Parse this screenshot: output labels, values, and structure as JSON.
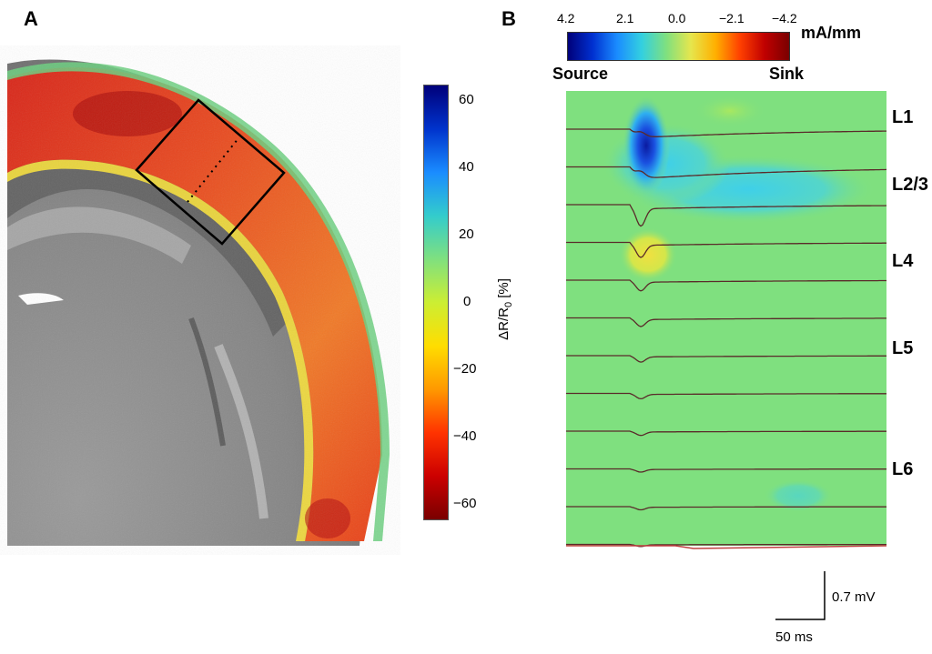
{
  "panel_a": {
    "letter": "A",
    "colorbar": {
      "ticks": [
        "60",
        "40",
        "20",
        "0",
        "−20",
        "−40",
        "−60"
      ],
      "label_main": "ΔR/R",
      "label_sub": "0",
      "label_unit": " [%]",
      "colors": [
        "#00007a",
        "#0033cc",
        "#1a8cff",
        "#33cccc",
        "#7fe07f",
        "#ccee33",
        "#ffdd00",
        "#ff9900",
        "#ff3300",
        "#cc0000",
        "#7a0000"
      ]
    },
    "overlay_colors": [
      "#6bcf7f",
      "#f7e03a",
      "#f7a33a",
      "#ef6a2a",
      "#d8261a",
      "#b81212"
    ]
  },
  "panel_b": {
    "letter": "B",
    "colorbar": {
      "ticks": [
        "4.2",
        "2.1",
        "0.0",
        "−2.1",
        "−4.2"
      ],
      "unit": "mA/mm",
      "source_label": "Source",
      "sink_label": "Sink"
    },
    "layers": [
      "L1",
      "L2/3",
      "L4",
      "L5",
      "L6"
    ],
    "trace_count": 12,
    "scale_bar": {
      "voltage": "0.7 mV",
      "time": "50 ms"
    },
    "colors": {
      "background": "#7fe07f",
      "source": "#0a1aa0",
      "sink_yellow": "#e6e64d",
      "trace": "#5a2a2a"
    }
  }
}
